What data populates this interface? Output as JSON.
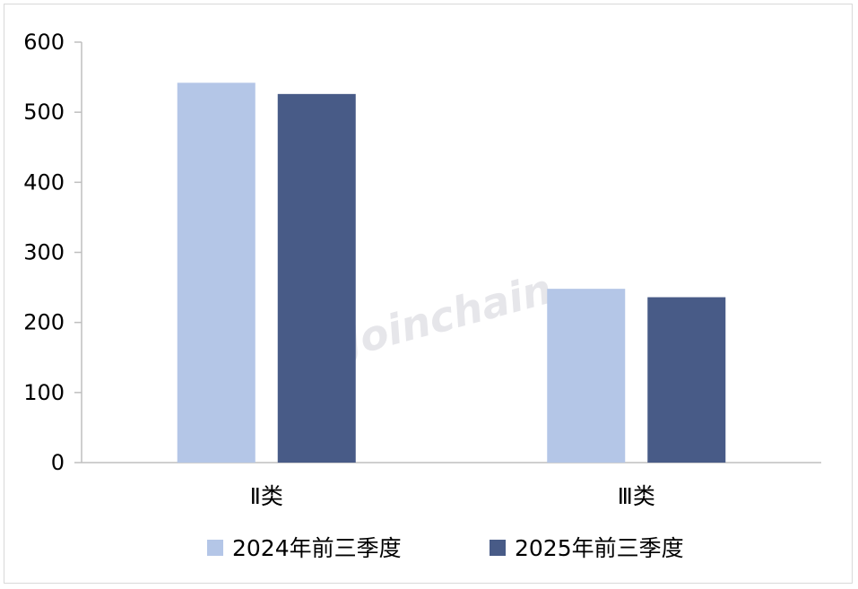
{
  "watermark": "Joinchain",
  "chart_data": {
    "type": "bar",
    "categories": [
      "Ⅱ类",
      "Ⅲ类"
    ],
    "series": [
      {
        "name": "2024年前三季度",
        "values": [
          542,
          248
        ],
        "color": "#b4c6e7"
      },
      {
        "name": "2025年前三季度",
        "values": [
          526,
          236
        ],
        "color": "#485b87"
      }
    ],
    "yticks": [
      "0",
      "100",
      "200",
      "300",
      "400",
      "500",
      "600"
    ],
    "ylim": [
      0,
      600
    ],
    "grid": false,
    "legend_position": "bottom"
  }
}
